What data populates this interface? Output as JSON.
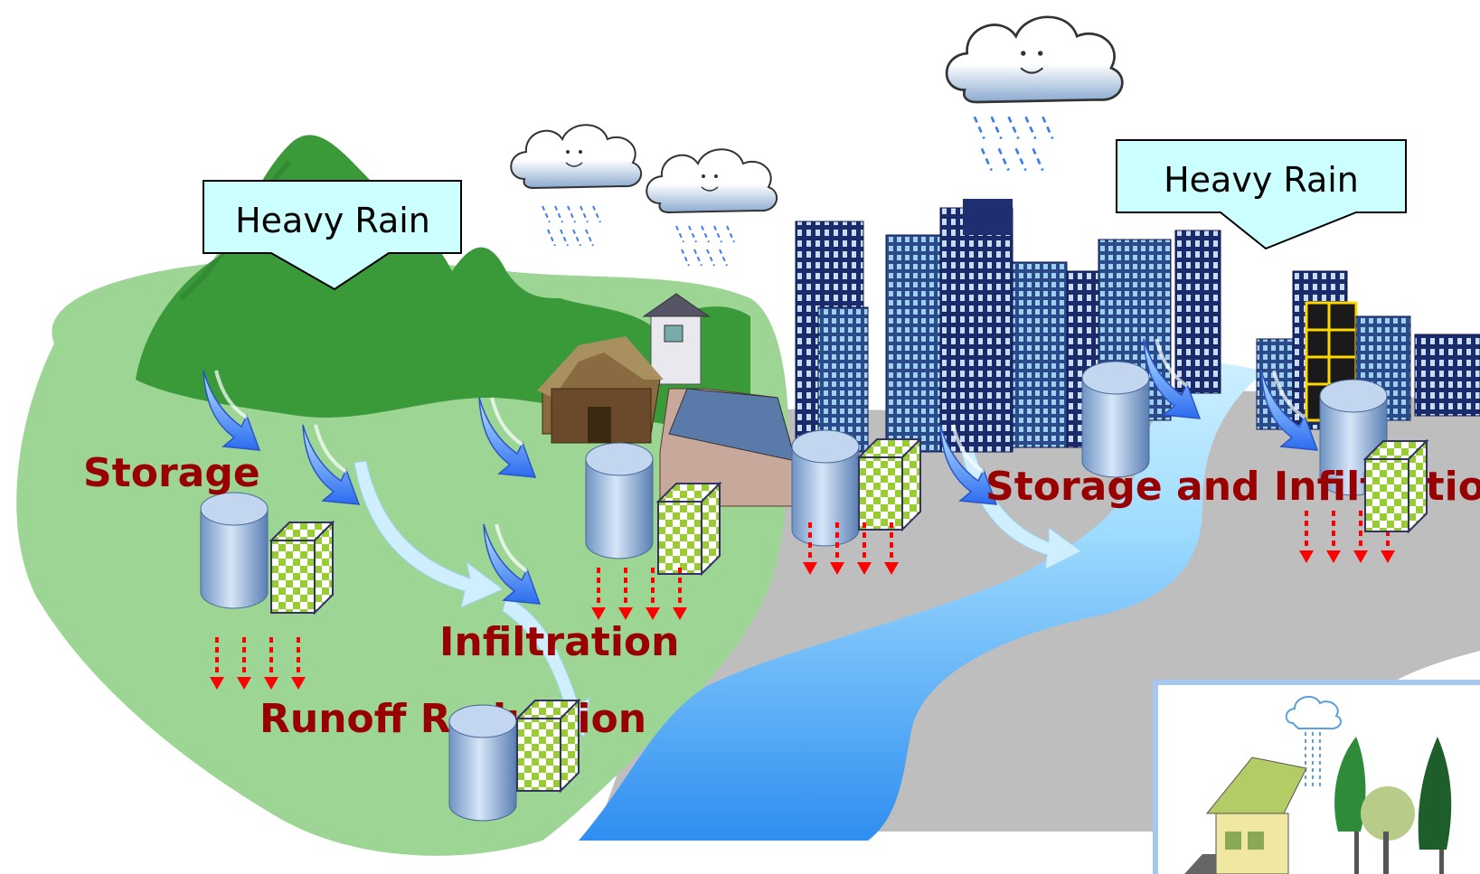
{
  "callouts": {
    "left": "Heavy Rain",
    "right": "Heavy Rain"
  },
  "labels": {
    "storage": "Storage",
    "infiltration": "Infiltration",
    "runoff_reduction": "Runoff Reduction",
    "storage_and_infiltration": "Storage and Infiltration"
  },
  "colors": {
    "land": "#9dd595",
    "mountain": "#3a9a3a",
    "urban_ground": "#bebebe",
    "river": "#4da3ee",
    "label": "#990000",
    "callout_fill": "#ccffff"
  }
}
